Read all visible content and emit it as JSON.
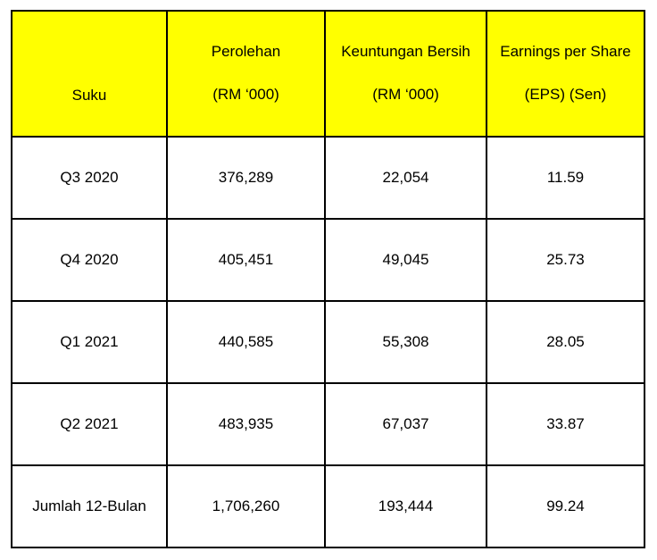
{
  "table": {
    "headers": [
      {
        "lines": [
          "Suku"
        ]
      },
      {
        "lines": [
          "Perolehan",
          "(RM ‘000)"
        ]
      },
      {
        "lines": [
          "Keuntungan Bersih",
          "(RM ‘000)"
        ]
      },
      {
        "lines": [
          "Earnings per Share",
          "(EPS) (Sen)"
        ]
      }
    ],
    "rows": [
      [
        "Q3 2020",
        "376,289",
        "22,054",
        "11.59"
      ],
      [
        "Q4 2020",
        "405,451",
        "49,045",
        "25.73"
      ],
      [
        "Q1 2021",
        "440,585",
        "55,308",
        "28.05"
      ],
      [
        "Q2 2021",
        "483,935",
        "67,037",
        "33.87"
      ],
      [
        "Jumlah 12-Bulan",
        "1,706,260",
        "193,444",
        "99.24"
      ]
    ],
    "header_color": "#ffff00",
    "border_color": "#000000"
  }
}
